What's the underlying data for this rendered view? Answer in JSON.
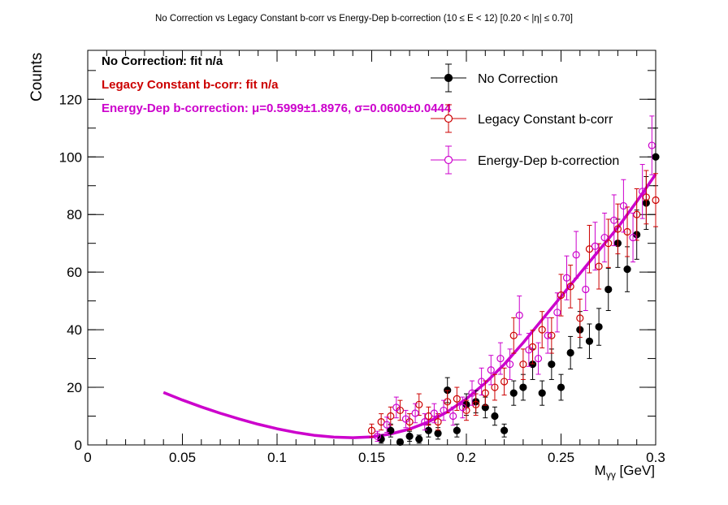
{
  "chart_data": {
    "type": "scatter",
    "title": "No Correction vs Legacy Constant b-corr vs Energy-Dep b-correction   (10 ≤ E < 12)   [0.20 < |η| ≤ 0.70]",
    "xlabel": "Mγγ [GeV]",
    "ylabel": "Counts",
    "xlim": [
      0,
      0.3
    ],
    "ylim": [
      0,
      137
    ],
    "x_ticks": [
      0,
      0.05,
      0.1,
      0.15,
      0.2,
      0.25,
      0.3
    ],
    "x_tick_labels": [
      "0",
      "0.05",
      "0.1",
      "0.15",
      "0.2",
      "0.25",
      "0.3"
    ],
    "y_ticks": [
      0,
      20,
      40,
      60,
      80,
      100,
      120
    ],
    "y_tick_labels": [
      "0",
      "20",
      "40",
      "60",
      "80",
      "100",
      "120"
    ],
    "legend_position": "top-right",
    "fit_texts": [
      {
        "text": "No Correction: fit n/a",
        "color": "#000000"
      },
      {
        "text": "Legacy Constant b-corr: fit n/a",
        "color": "#cc0000"
      },
      {
        "text": "Energy-Dep b-correction: μ=0.5999±1.8976, σ=0.0600±0.0444",
        "color": "#cc00cc"
      }
    ],
    "series": [
      {
        "name": "No Correction",
        "color": "#000000",
        "marker": "filled-circle",
        "x": [
          0.155,
          0.16,
          0.165,
          0.17,
          0.175,
          0.18,
          0.185,
          0.19,
          0.195,
          0.2,
          0.205,
          0.21,
          0.215,
          0.22,
          0.225,
          0.23,
          0.235,
          0.24,
          0.245,
          0.25,
          0.255,
          0.26,
          0.265,
          0.27,
          0.275,
          0.28,
          0.285,
          0.29,
          0.295,
          0.3
        ],
        "y": [
          2,
          5,
          1,
          3,
          2,
          5,
          4,
          19,
          5,
          14,
          15,
          13,
          10,
          5,
          18,
          20,
          28,
          18,
          28,
          20,
          32,
          40,
          36,
          41,
          54,
          70,
          61,
          73,
          84,
          100
        ]
      },
      {
        "name": "Legacy Constant b-corr",
        "color": "#cc0000",
        "marker": "open-circle",
        "x": [
          0.15,
          0.155,
          0.16,
          0.165,
          0.17,
          0.175,
          0.18,
          0.185,
          0.19,
          0.195,
          0.2,
          0.205,
          0.21,
          0.215,
          0.22,
          0.225,
          0.23,
          0.235,
          0.24,
          0.245,
          0.25,
          0.255,
          0.26,
          0.265,
          0.27,
          0.275,
          0.28,
          0.285,
          0.29,
          0.295,
          0.3
        ],
        "y": [
          5,
          8,
          10,
          12,
          8,
          14,
          10,
          8,
          15,
          16,
          12,
          14,
          18,
          20,
          22,
          38,
          28,
          34,
          40,
          38,
          52,
          55,
          44,
          68,
          62,
          70,
          75,
          74,
          80,
          86,
          85
        ]
      },
      {
        "name": "Energy-Dep b-correction",
        "color": "#cc00cc",
        "marker": "open-circle",
        "x": [
          0.153,
          0.158,
          0.163,
          0.168,
          0.173,
          0.178,
          0.183,
          0.188,
          0.193,
          0.198,
          0.203,
          0.208,
          0.213,
          0.218,
          0.223,
          0.228,
          0.233,
          0.238,
          0.243,
          0.248,
          0.253,
          0.258,
          0.263,
          0.268,
          0.273,
          0.278,
          0.283,
          0.288,
          0.293,
          0.298
        ],
        "y": [
          3,
          7,
          13,
          9,
          11,
          8,
          11,
          12,
          10,
          13,
          18,
          22,
          26,
          30,
          28,
          45,
          33,
          30,
          38,
          46,
          58,
          66,
          54,
          69,
          72,
          78,
          83,
          72,
          88,
          104
        ]
      }
    ],
    "fit_curve": {
      "series": "Energy-Dep b-correction",
      "color": "#cc00cc",
      "x": [
        0.04,
        0.05,
        0.06,
        0.07,
        0.08,
        0.09,
        0.1,
        0.11,
        0.12,
        0.13,
        0.14,
        0.15,
        0.16,
        0.17,
        0.18,
        0.19,
        0.2,
        0.21,
        0.22,
        0.23,
        0.24,
        0.25,
        0.26,
        0.27,
        0.28,
        0.29,
        0.3
      ],
      "y": [
        18.2,
        15.6,
        13.2,
        11,
        9,
        7.2,
        5.6,
        4.3,
        3.3,
        2.7,
        2.5,
        2.8,
        3.8,
        5.5,
        8,
        11.5,
        16,
        21.5,
        28,
        35.5,
        43.5,
        51.5,
        59.5,
        67.5,
        75.5,
        84.5,
        94
      ]
    }
  }
}
